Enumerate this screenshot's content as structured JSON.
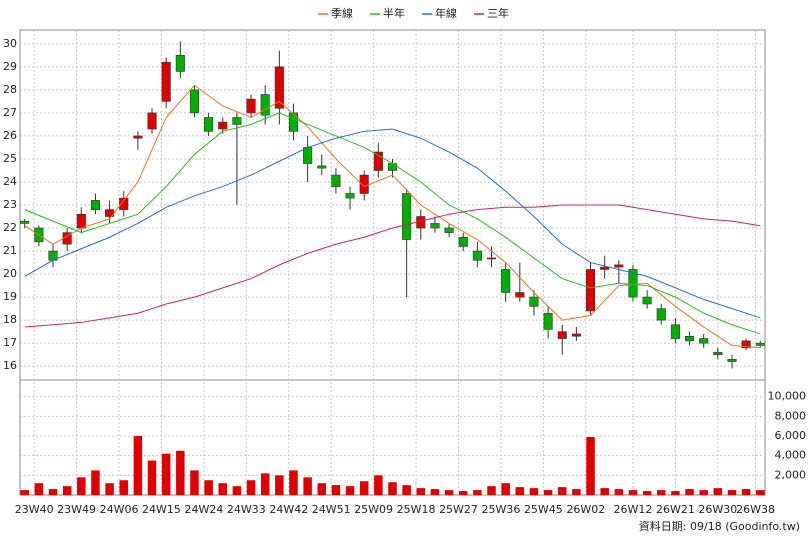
{
  "chart_data": {
    "type": "candlestick",
    "source_note": "資料日期: 09/18  (Goodinfo.tw)",
    "xlim": [
      -1,
      157
    ],
    "xticks": [
      {
        "value": 2,
        "label": "23W40"
      },
      {
        "value": 11,
        "label": "23W49"
      },
      {
        "value": 20,
        "label": "24W06"
      },
      {
        "value": 29,
        "label": "24W15"
      },
      {
        "value": 38,
        "label": "24W24"
      },
      {
        "value": 47,
        "label": "24W33"
      },
      {
        "value": 56,
        "label": "24W42"
      },
      {
        "value": 65,
        "label": "24W51"
      },
      {
        "value": 74,
        "label": "25W09"
      },
      {
        "value": 83,
        "label": "25W18"
      },
      {
        "value": 92,
        "label": "25W27"
      },
      {
        "value": 101,
        "label": "25W36"
      },
      {
        "value": 110,
        "label": "25W45"
      },
      {
        "value": 119,
        "label": "26W02"
      },
      {
        "value": 129,
        "label": "26W12"
      },
      {
        "value": 138,
        "label": "26W21"
      },
      {
        "value": 147,
        "label": "26W30"
      },
      {
        "value": 155,
        "label": "26W38"
      }
    ],
    "ylim": [
      15.4,
      30.6
    ],
    "yticks": [
      16,
      17,
      18,
      19,
      20,
      21,
      22,
      23,
      24,
      25,
      26,
      27,
      28,
      29,
      30
    ],
    "y2lim": [
      0,
      11700
    ],
    "y2ticks": [
      {
        "value": 2000,
        "label": "2,000"
      },
      {
        "value": 4000,
        "label": "4,000"
      },
      {
        "value": 6000,
        "label": "6,000"
      },
      {
        "value": 8000,
        "label": "8,000"
      },
      {
        "value": 10000,
        "label": "10,000"
      }
    ],
    "grid": true,
    "up_color": "#e00000",
    "down_color": "#00b000",
    "x": [
      0,
      3,
      6,
      9,
      12,
      15,
      18,
      21,
      24,
      27,
      30,
      33,
      36,
      39,
      42,
      45,
      48,
      51,
      54,
      57,
      60,
      63,
      66,
      69,
      72,
      75,
      78,
      81,
      84,
      87,
      90,
      93,
      96,
      99,
      102,
      105,
      108,
      111,
      114,
      117,
      120,
      123,
      126,
      129,
      132,
      135,
      138,
      141,
      144,
      147,
      150,
      153,
      156
    ],
    "open": [
      22.3,
      22.0,
      21.0,
      21.3,
      22.0,
      23.2,
      22.5,
      22.8,
      25.9,
      26.3,
      27.5,
      29.5,
      28.0,
      26.8,
      26.3,
      26.8,
      27.0,
      27.8,
      27.2,
      27.0,
      25.5,
      24.7,
      24.3,
      23.5,
      23.5,
      24.5,
      24.8,
      23.5,
      22.0,
      22.2,
      22.0,
      21.6,
      21.0,
      20.7,
      20.2,
      19.0,
      19.0,
      18.3,
      17.2,
      17.3,
      18.4,
      20.2,
      20.3,
      20.2,
      19.0,
      18.5,
      17.8,
      17.3,
      17.2,
      16.6,
      16.3,
      16.8,
      17.0
    ],
    "high": [
      22.4,
      22.1,
      21.3,
      22.0,
      22.9,
      23.5,
      23.2,
      23.6,
      26.2,
      27.2,
      29.4,
      30.1,
      28.2,
      27.0,
      26.8,
      27.0,
      27.8,
      28.2,
      29.7,
      27.4,
      26.0,
      25.2,
      24.6,
      23.8,
      24.5,
      25.7,
      25.0,
      23.7,
      22.8,
      22.5,
      22.2,
      21.8,
      21.4,
      21.2,
      20.5,
      20.5,
      19.3,
      18.6,
      17.8,
      17.7,
      20.5,
      20.8,
      20.6,
      20.4,
      19.3,
      18.7,
      18.1,
      17.5,
      17.4,
      16.8,
      16.5,
      17.2,
      17.1
    ],
    "low": [
      22.0,
      21.2,
      20.3,
      21.0,
      21.8,
      22.6,
      22.2,
      22.5,
      25.4,
      26.1,
      27.2,
      28.5,
      26.8,
      26.0,
      26.1,
      23.0,
      26.8,
      26.5,
      26.5,
      25.8,
      24.0,
      24.3,
      23.5,
      22.8,
      23.2,
      24.2,
      24.2,
      19.0,
      21.5,
      21.8,
      21.6,
      21.0,
      20.3,
      20.3,
      18.8,
      18.8,
      18.2,
      17.2,
      16.5,
      17.1,
      18.2,
      19.8,
      19.6,
      18.8,
      18.5,
      17.8,
      17.0,
      16.9,
      16.8,
      16.3,
      15.9,
      16.7,
      16.8
    ],
    "close": [
      22.2,
      21.4,
      20.6,
      21.8,
      22.6,
      22.8,
      22.8,
      23.3,
      26.0,
      27.0,
      29.2,
      28.8,
      27.0,
      26.2,
      26.6,
      26.5,
      27.6,
      26.9,
      29.0,
      26.2,
      24.8,
      24.6,
      23.8,
      23.3,
      24.3,
      25.3,
      24.5,
      21.5,
      22.5,
      22.0,
      21.8,
      21.2,
      20.6,
      20.7,
      19.2,
      19.2,
      18.6,
      17.6,
      17.5,
      17.4,
      20.2,
      20.3,
      20.4,
      19.0,
      18.7,
      18.0,
      17.2,
      17.1,
      17.0,
      16.5,
      16.2,
      17.1,
      16.9
    ],
    "volume": {
      "color": "#e00000",
      "values": [
        500,
        1200,
        600,
        900,
        1800,
        2500,
        1200,
        1500,
        6000,
        3500,
        4200,
        4500,
        2500,
        1500,
        1200,
        900,
        1500,
        2200,
        2000,
        2500,
        1800,
        1200,
        1000,
        900,
        1400,
        2000,
        1300,
        1000,
        700,
        600,
        500,
        400,
        500,
        900,
        1200,
        800,
        700,
        500,
        800,
        600,
        5900,
        700,
        600,
        500,
        400,
        500,
        400,
        600,
        500,
        700,
        500,
        600,
        500
      ]
    },
    "series": [
      {
        "name": "季線",
        "color": "#f07020",
        "x": [
          0,
          6,
          12,
          18,
          24,
          30,
          36,
          42,
          48,
          54,
          60,
          66,
          72,
          78,
          84,
          90,
          96,
          102,
          108,
          114,
          120,
          126,
          132,
          138,
          144,
          150,
          156
        ],
        "values": [
          22.1,
          21.3,
          22.0,
          22.4,
          24.0,
          26.8,
          28.2,
          27.3,
          26.8,
          27.5,
          26.4,
          25.0,
          23.8,
          24.3,
          23.0,
          22.2,
          21.5,
          20.5,
          19.2,
          18.0,
          18.2,
          19.5,
          19.6,
          18.6,
          17.7,
          16.9,
          16.8
        ]
      },
      {
        "name": "半年",
        "color": "#20c020",
        "x": [
          0,
          6,
          12,
          18,
          24,
          30,
          36,
          42,
          48,
          54,
          60,
          66,
          72,
          78,
          84,
          90,
          96,
          102,
          108,
          114,
          120,
          126,
          132,
          138,
          144,
          150,
          156
        ],
        "values": [
          22.8,
          22.3,
          21.8,
          22.2,
          22.6,
          23.8,
          25.2,
          26.2,
          26.5,
          27.0,
          26.5,
          26.0,
          25.5,
          24.8,
          24.0,
          23.0,
          22.4,
          21.6,
          20.7,
          19.8,
          19.4,
          19.6,
          19.5,
          19.0,
          18.3,
          17.8,
          17.4
        ]
      },
      {
        "name": "年線",
        "color": "#2070d0",
        "x": [
          0,
          6,
          12,
          18,
          24,
          30,
          36,
          42,
          48,
          54,
          60,
          66,
          72,
          78,
          84,
          90,
          96,
          102,
          108,
          114,
          120,
          126,
          132,
          138,
          144,
          150,
          156
        ],
        "values": [
          19.9,
          20.6,
          21.1,
          21.6,
          22.2,
          22.9,
          23.4,
          23.8,
          24.3,
          24.9,
          25.5,
          25.9,
          26.2,
          26.3,
          25.9,
          25.3,
          24.6,
          23.6,
          22.5,
          21.3,
          20.5,
          20.2,
          19.9,
          19.4,
          18.9,
          18.5,
          18.1
        ]
      },
      {
        "name": "三年",
        "color": "#d02070",
        "x": [
          0,
          6,
          12,
          18,
          24,
          30,
          36,
          42,
          48,
          54,
          60,
          66,
          72,
          78,
          84,
          90,
          96,
          102,
          108,
          114,
          120,
          126,
          132,
          138,
          144,
          150,
          156
        ],
        "values": [
          17.7,
          17.8,
          17.9,
          18.1,
          18.3,
          18.7,
          19.0,
          19.4,
          19.8,
          20.4,
          20.9,
          21.3,
          21.6,
          22.0,
          22.3,
          22.6,
          22.8,
          22.9,
          22.9,
          23.0,
          23.0,
          23.0,
          22.8,
          22.6,
          22.4,
          22.3,
          22.1
        ]
      }
    ]
  }
}
